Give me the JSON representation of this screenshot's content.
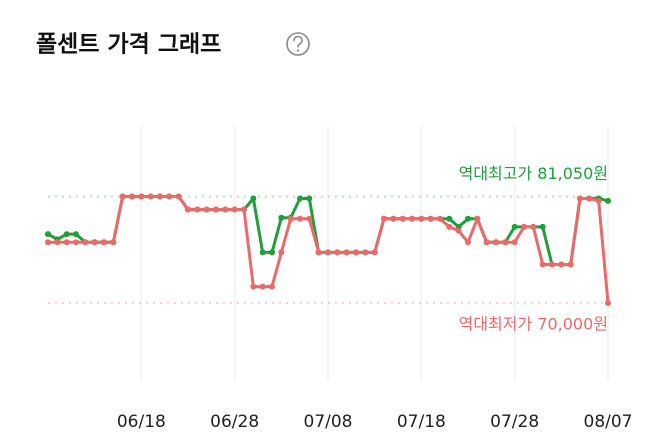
{
  "chart_data": {
    "type": "line",
    "title": "폴센트 가격 그래프",
    "categories": [
      null,
      null,
      null,
      null,
      null,
      null,
      null,
      null,
      null,
      null,
      "06/18",
      null,
      null,
      null,
      null,
      null,
      null,
      null,
      null,
      null,
      "06/28",
      null,
      null,
      null,
      null,
      null,
      null,
      null,
      null,
      null,
      "07/08",
      null,
      null,
      null,
      null,
      null,
      null,
      null,
      null,
      null,
      "07/18",
      null,
      null,
      null,
      null,
      null,
      null,
      null,
      null,
      null,
      "07/28",
      null,
      null,
      null,
      null,
      null,
      null,
      null,
      null,
      null,
      "08/07"
    ],
    "series": [
      {
        "name": "최고가",
        "color": "#1f9e3a",
        "values": [
          77150,
          76600,
          77150,
          77150,
          76300,
          76300,
          76300,
          76300,
          81050,
          81050,
          81050,
          81050,
          81050,
          81050,
          81050,
          79700,
          79700,
          79700,
          79700,
          79700,
          79700,
          79700,
          80850,
          75250,
          75250,
          78850,
          78850,
          80850,
          80850,
          75250,
          75250,
          75250,
          75250,
          75250,
          75250,
          75250,
          78750,
          78750,
          78750,
          78750,
          78750,
          78750,
          78750,
          78750,
          77900,
          78750,
          78750,
          76300,
          76300,
          76300,
          77900,
          77900,
          77900,
          77900,
          74000,
          74000,
          74000,
          80850,
          80850,
          80850,
          80600
        ]
      },
      {
        "name": "최저가",
        "color": "#e96a6b",
        "values": [
          76300,
          76300,
          76300,
          76300,
          76300,
          76300,
          76300,
          76300,
          81050,
          81050,
          81050,
          81050,
          81050,
          81050,
          81050,
          79700,
          79700,
          79700,
          79700,
          79700,
          79700,
          79700,
          71700,
          71700,
          71700,
          75250,
          78750,
          78750,
          78750,
          75250,
          75250,
          75250,
          75250,
          75250,
          75250,
          75250,
          78750,
          78750,
          78750,
          78750,
          78750,
          78750,
          78750,
          77900,
          77500,
          76300,
          78750,
          76300,
          76300,
          76300,
          76300,
          77900,
          77900,
          74000,
          74000,
          74000,
          74000,
          80850,
          80850,
          80600,
          70000
        ]
      }
    ],
    "reference_lines": [
      {
        "value": 81050,
        "label": "역대최고가 81,050원",
        "color": "#1f9e3a"
      },
      {
        "value": 70000,
        "label": "역대최저가 70,000원",
        "color": "#e96a6b"
      }
    ],
    "ylim": [
      62000,
      89000
    ],
    "grid": true
  }
}
